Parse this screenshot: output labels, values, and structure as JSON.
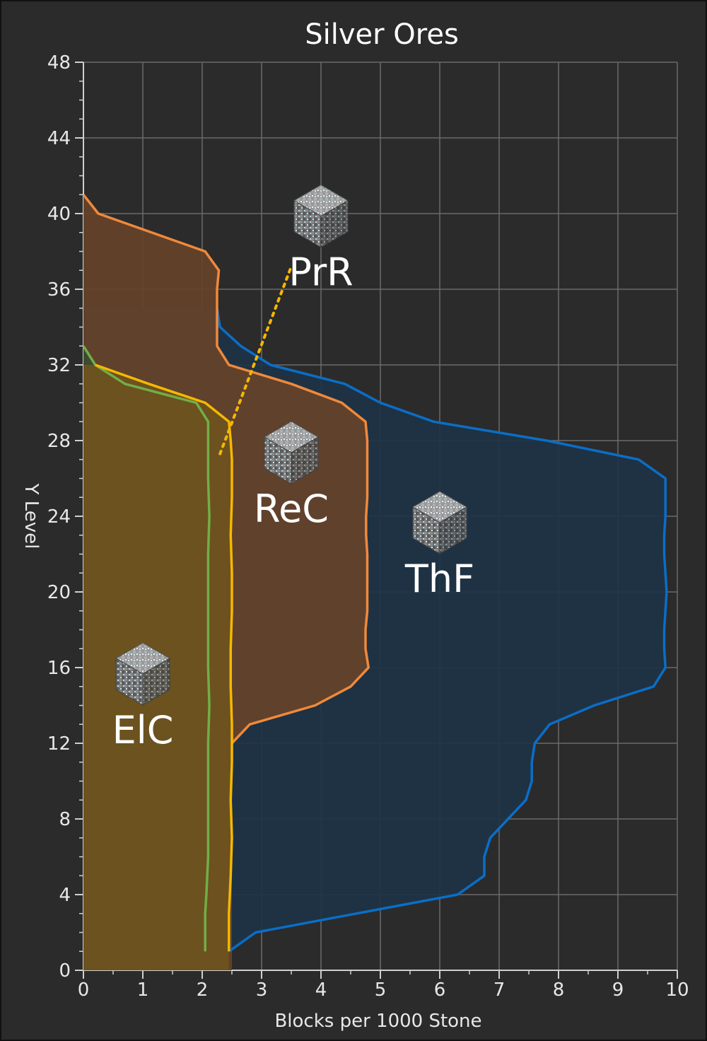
{
  "chart_data": {
    "type": "area",
    "title": "Silver Ores",
    "xlabel": "Blocks per 1000 Stone",
    "ylabel": "Y Level",
    "xlim": [
      0,
      10
    ],
    "ylim": [
      0,
      48
    ],
    "x_ticks": [
      "0",
      "1",
      "2",
      "3",
      "4",
      "5",
      "6",
      "7",
      "8",
      "9",
      "10"
    ],
    "y_ticks": [
      "0",
      "4",
      "8",
      "12",
      "16",
      "20",
      "24",
      "28",
      "32",
      "36",
      "40",
      "44",
      "48"
    ],
    "grid": true,
    "orientation": "horizontal-profile",
    "series": [
      {
        "name": "ThF",
        "color": "#0a6ec7",
        "fill": "#1d3346",
        "icon": "silver-ore-block-icon",
        "points": [
          [
            2.45,
            1
          ],
          [
            2.9,
            2
          ],
          [
            6.3,
            4
          ],
          [
            6.75,
            5
          ],
          [
            6.75,
            6
          ],
          [
            6.85,
            7
          ],
          [
            7.45,
            9
          ],
          [
            7.55,
            10
          ],
          [
            7.55,
            11
          ],
          [
            7.6,
            12
          ],
          [
            7.85,
            13
          ],
          [
            8.6,
            14
          ],
          [
            9.6,
            15
          ],
          [
            9.8,
            16
          ],
          [
            9.78,
            17
          ],
          [
            9.78,
            18
          ],
          [
            9.8,
            19
          ],
          [
            9.82,
            20
          ],
          [
            9.8,
            21
          ],
          [
            9.78,
            22
          ],
          [
            9.78,
            23
          ],
          [
            9.8,
            24
          ],
          [
            9.8,
            25
          ],
          [
            9.8,
            26
          ],
          [
            9.35,
            27
          ],
          [
            7.8,
            28
          ],
          [
            5.9,
            29
          ],
          [
            5.0,
            30
          ],
          [
            4.4,
            31
          ],
          [
            3.15,
            32
          ],
          [
            2.65,
            33
          ],
          [
            2.3,
            34
          ],
          [
            2.25,
            35
          ]
        ]
      },
      {
        "name": "ReC",
        "color": "#f0893b",
        "fill": "#66422a",
        "icon": "silver-ore-block-icon",
        "points": [
          [
            2.5,
            12
          ],
          [
            2.8,
            13
          ],
          [
            3.9,
            14
          ],
          [
            4.5,
            15
          ],
          [
            4.8,
            16
          ],
          [
            4.75,
            17
          ],
          [
            4.75,
            18
          ],
          [
            4.78,
            19
          ],
          [
            4.78,
            20
          ],
          [
            4.78,
            21
          ],
          [
            4.78,
            22
          ],
          [
            4.76,
            23
          ],
          [
            4.76,
            24
          ],
          [
            4.78,
            25
          ],
          [
            4.78,
            26
          ],
          [
            4.78,
            27
          ],
          [
            4.78,
            28
          ],
          [
            4.75,
            29
          ],
          [
            4.35,
            30
          ],
          [
            3.5,
            31
          ],
          [
            2.45,
            32
          ],
          [
            2.25,
            33
          ],
          [
            2.25,
            34
          ],
          [
            2.25,
            35
          ],
          [
            2.25,
            36
          ],
          [
            2.28,
            37
          ],
          [
            2.05,
            38
          ],
          [
            0.25,
            40
          ],
          [
            0,
            41
          ]
        ]
      },
      {
        "name": "ElC",
        "color": "#72ae47",
        "fill": "#3b4c31",
        "icon": "silver-ore-block-icon",
        "points": [
          [
            2.05,
            1
          ],
          [
            2.05,
            2
          ],
          [
            2.05,
            3
          ],
          [
            2.07,
            4
          ],
          [
            2.1,
            6
          ],
          [
            2.1,
            8
          ],
          [
            2.1,
            10
          ],
          [
            2.1,
            12
          ],
          [
            2.12,
            14
          ],
          [
            2.1,
            16
          ],
          [
            2.1,
            18
          ],
          [
            2.1,
            20
          ],
          [
            2.1,
            22
          ],
          [
            2.12,
            24
          ],
          [
            2.1,
            26
          ],
          [
            2.1,
            28
          ],
          [
            2.1,
            29
          ],
          [
            1.9,
            30
          ],
          [
            0.7,
            31
          ],
          [
            0.2,
            32
          ],
          [
            0,
            33
          ]
        ]
      },
      {
        "name": "PrR",
        "color": "#f5b800",
        "fill": "#6f531e",
        "icon": "silver-ore-block-icon",
        "points": [
          [
            2.45,
            1
          ],
          [
            2.45,
            3
          ],
          [
            2.48,
            5
          ],
          [
            2.5,
            7
          ],
          [
            2.48,
            9
          ],
          [
            2.5,
            11
          ],
          [
            2.5,
            13
          ],
          [
            2.48,
            15
          ],
          [
            2.48,
            17
          ],
          [
            2.5,
            19
          ],
          [
            2.5,
            21
          ],
          [
            2.48,
            23
          ],
          [
            2.5,
            25
          ],
          [
            2.5,
            27
          ],
          [
            2.48,
            28
          ],
          [
            2.45,
            29
          ],
          [
            2.05,
            30
          ],
          [
            1.1,
            31
          ],
          [
            0.2,
            32
          ]
        ]
      }
    ],
    "annotations": [
      {
        "text": "PrR",
        "icon": "silver-ore-block-icon",
        "x": 4.0,
        "y": 36.5
      },
      {
        "text": "ReC",
        "icon": "silver-ore-block-icon",
        "x": 3.5,
        "y": 24
      },
      {
        "text": "ThF",
        "icon": "silver-ore-block-icon",
        "x": 6.0,
        "y": 20.3
      },
      {
        "text": "ElC",
        "icon": "silver-ore-block-icon",
        "x": 1.0,
        "y": 12.3
      }
    ],
    "leader_line": {
      "series": "PrR",
      "from": [
        2.3,
        27.3
      ],
      "to": [
        3.5,
        37.2
      ],
      "style": "dotted"
    }
  }
}
